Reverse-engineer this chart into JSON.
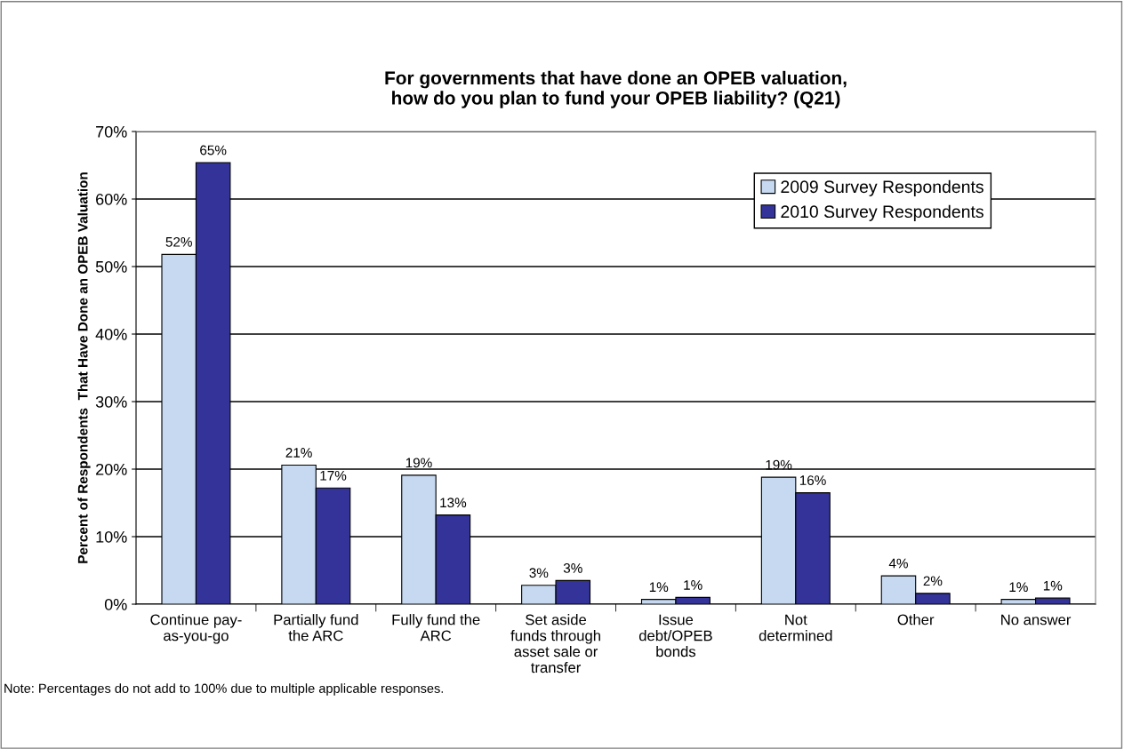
{
  "chart_data": {
    "type": "bar",
    "title": "For governments that have done an OPEB valuation,\nhow do you plan to fund your OPEB liability? (Q21)",
    "ylabel": "Percent of Respondents  That Have Done an OPEB Valuation",
    "categories": [
      "Continue pay-\nas-you-go",
      "Partially fund\nthe ARC",
      "Fully fund the\nARC",
      "Set aside\nfunds through\nasset sale or\ntransfer",
      "Issue\ndebt/OPEB\nbonds",
      "Not\ndetermined",
      "Other",
      "No answer"
    ],
    "series": [
      {
        "name": "2009 Survey Respondents",
        "color": "#c6d9f0",
        "values": [
          51.8,
          20.6,
          19.1,
          2.8,
          0.7,
          18.8,
          4.2,
          0.7
        ],
        "value_labels": [
          "52%",
          "21%",
          "19%",
          "3%",
          "1%",
          "19%",
          "4%",
          "1%"
        ]
      },
      {
        "name": "2010 Survey Respondents",
        "color": "#333399",
        "values": [
          65.4,
          17.2,
          13.2,
          3.5,
          1.0,
          16.5,
          1.6,
          0.9
        ],
        "value_labels": [
          "65%",
          "17%",
          "13%",
          "3%",
          "1%",
          "16%",
          "2%",
          "1%"
        ]
      }
    ],
    "ylim": [
      0,
      70
    ],
    "yticks": [
      {
        "value": 0,
        "label": "0%"
      },
      {
        "value": 10,
        "label": "10%"
      },
      {
        "value": 20,
        "label": "20%"
      },
      {
        "value": 30,
        "label": "30%"
      },
      {
        "value": 40,
        "label": "40%"
      },
      {
        "value": 50,
        "label": "50%"
      },
      {
        "value": 60,
        "label": "60%"
      },
      {
        "value": 70,
        "label": "70%"
      }
    ],
    "grid": "y",
    "legend": "top right",
    "annotations": [
      "Note: Percentages do not add to 100% due to multiple applicable responses."
    ]
  }
}
